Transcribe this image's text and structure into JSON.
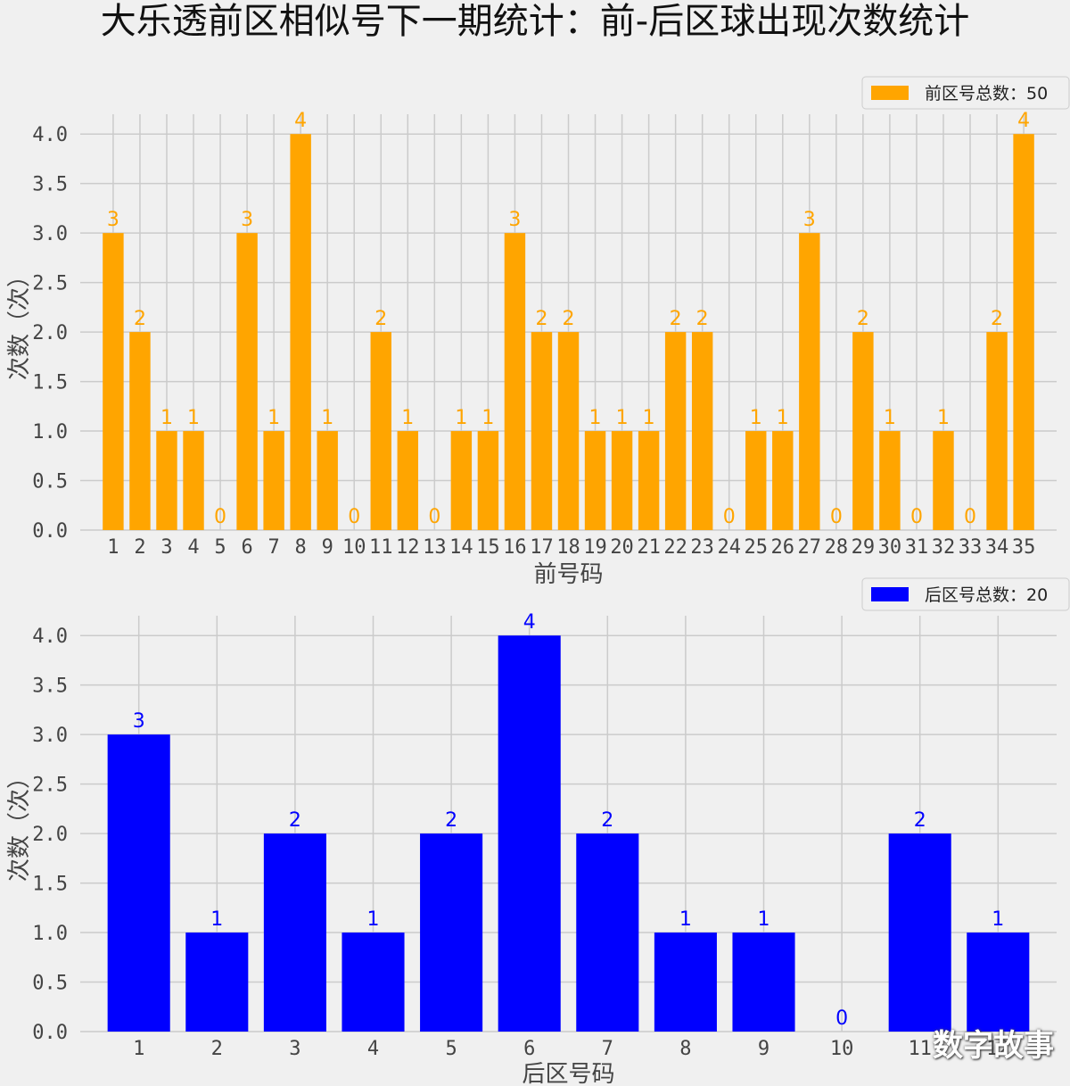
{
  "title": "大乐透前区相似号下一期统计：前-后区球出现次数统计",
  "watermark": "数字故事",
  "chart_data": [
    {
      "type": "bar",
      "title": "",
      "xlabel": "前号码",
      "ylabel": "次数（次）",
      "ylim": [
        0,
        4.2
      ],
      "yticks": [
        "0.0",
        "0.5",
        "1.0",
        "1.5",
        "2.0",
        "2.5",
        "3.0",
        "3.5",
        "4.0"
      ],
      "categories": [
        "1",
        "2",
        "3",
        "4",
        "5",
        "6",
        "7",
        "8",
        "9",
        "10",
        "11",
        "12",
        "13",
        "14",
        "15",
        "16",
        "17",
        "18",
        "19",
        "20",
        "21",
        "22",
        "23",
        "24",
        "25",
        "26",
        "27",
        "28",
        "29",
        "30",
        "31",
        "32",
        "33",
        "34",
        "35"
      ],
      "values": [
        3,
        2,
        1,
        1,
        0,
        3,
        1,
        4,
        1,
        0,
        2,
        1,
        0,
        1,
        1,
        3,
        2,
        2,
        1,
        1,
        1,
        2,
        2,
        0,
        1,
        1,
        3,
        0,
        2,
        1,
        0,
        1,
        0,
        2,
        4
      ],
      "color": "#ffa500",
      "legend": "前区号总数：50",
      "legend_position": "top-right",
      "grid": true
    },
    {
      "type": "bar",
      "title": "",
      "xlabel": "后区号码",
      "ylabel": "次数（次）",
      "ylim": [
        0,
        4.2
      ],
      "yticks": [
        "0.0",
        "0.5",
        "1.0",
        "1.5",
        "2.0",
        "2.5",
        "3.0",
        "3.5",
        "4.0"
      ],
      "categories": [
        "1",
        "2",
        "3",
        "4",
        "5",
        "6",
        "7",
        "8",
        "9",
        "10",
        "11",
        "12"
      ],
      "values": [
        3,
        1,
        2,
        1,
        2,
        4,
        2,
        1,
        1,
        0,
        2,
        1
      ],
      "color": "#0000ff",
      "legend": "后区号总数：20",
      "legend_position": "top-right",
      "grid": true
    }
  ]
}
